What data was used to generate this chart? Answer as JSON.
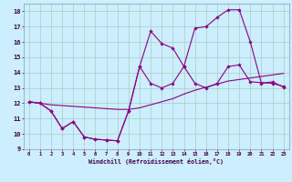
{
  "xlabel": "Windchill (Refroidissement éolien,°C)",
  "bg_color": "#cceeff",
  "grid_color": "#aaccbb",
  "line_color": "#880088",
  "xlim": [
    -0.5,
    23.5
  ],
  "ylim": [
    9,
    18.5
  ],
  "xticks": [
    0,
    1,
    2,
    3,
    4,
    5,
    6,
    7,
    8,
    9,
    10,
    11,
    12,
    13,
    14,
    15,
    16,
    17,
    18,
    19,
    20,
    21,
    22,
    23
  ],
  "yticks": [
    9,
    10,
    11,
    12,
    13,
    14,
    15,
    16,
    17,
    18
  ],
  "line1_x": [
    0,
    1,
    2,
    3,
    4,
    5,
    6,
    7,
    8,
    9,
    10,
    11,
    12,
    13,
    14,
    15,
    16,
    17,
    18,
    19,
    20,
    21,
    22,
    23
  ],
  "line1_y": [
    12.1,
    12.0,
    11.9,
    11.85,
    11.8,
    11.75,
    11.7,
    11.65,
    11.6,
    11.6,
    11.7,
    11.9,
    12.1,
    12.3,
    12.6,
    12.85,
    13.05,
    13.25,
    13.45,
    13.55,
    13.65,
    13.75,
    13.85,
    13.95
  ],
  "line2_x": [
    0,
    1,
    2,
    3,
    4,
    5,
    6,
    7,
    8,
    9,
    10,
    11,
    12,
    13,
    14,
    15,
    16,
    17,
    18,
    19,
    20,
    21,
    22,
    23
  ],
  "line2_y": [
    12.1,
    12.0,
    11.5,
    10.35,
    10.8,
    9.8,
    9.65,
    9.6,
    9.55,
    11.5,
    14.4,
    13.3,
    13.0,
    13.3,
    14.4,
    13.3,
    13.0,
    13.3,
    14.4,
    14.5,
    13.4,
    13.35,
    13.3,
    13.1
  ],
  "line3_x": [
    0,
    1,
    2,
    3,
    4,
    5,
    6,
    7,
    8,
    9,
    10,
    11,
    12,
    13,
    14,
    15,
    16,
    17,
    18,
    19,
    20,
    21,
    22,
    23
  ],
  "line3_y": [
    12.1,
    12.0,
    11.5,
    10.35,
    10.8,
    9.8,
    9.65,
    9.6,
    9.55,
    11.5,
    14.4,
    16.7,
    15.9,
    15.6,
    14.4,
    16.9,
    17.0,
    17.6,
    18.1,
    18.1,
    16.0,
    13.3,
    13.4,
    13.05
  ]
}
